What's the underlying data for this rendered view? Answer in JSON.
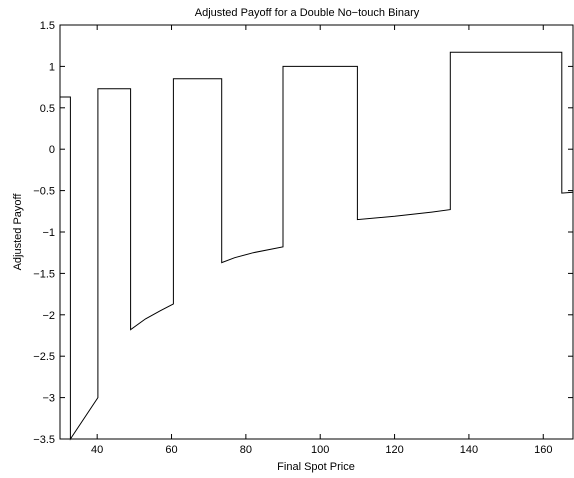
{
  "chart_data": {
    "type": "line",
    "title": "Adjusted Payoff for a Double No−touch Binary",
    "xlabel": "Final Spot Price",
    "ylabel": "Adjusted Payoff",
    "xlim": [
      30,
      168
    ],
    "ylim": [
      -3.5,
      1.5
    ],
    "grid": false,
    "x_ticks": [
      40,
      60,
      80,
      100,
      120,
      140,
      160
    ],
    "x_tick_labels": [
      "40",
      "60",
      "80",
      "100",
      "120",
      "140",
      "160"
    ],
    "y_ticks": [
      1.5,
      1,
      0.5,
      0,
      -0.5,
      -1,
      -1.5,
      -2,
      -2.5,
      -3,
      -3.5
    ],
    "y_tick_labels": [
      "1.5",
      "1",
      "0.5",
      "0",
      "−0.5",
      "−1",
      "−1.5",
      "−2",
      "−2.5",
      "−3",
      "−3.5"
    ],
    "series": [
      {
        "color": "#000000",
        "x": [
          30,
          32.8,
          32.8,
          40.2,
          40.2,
          49,
          49,
          53,
          57,
          60.5,
          60.5,
          73.5,
          73.5,
          77,
          82,
          90,
          90,
          110,
          110,
          120,
          130,
          135,
          135,
          165,
          165,
          168
        ],
        "y": [
          0.63,
          0.63,
          -3.5,
          -3.0,
          0.73,
          0.73,
          -2.18,
          -2.05,
          -1.95,
          -1.87,
          0.85,
          0.85,
          -1.37,
          -1.31,
          -1.25,
          -1.18,
          1.0,
          1.0,
          -0.85,
          -0.81,
          -0.76,
          -0.73,
          1.17,
          1.17,
          -0.53,
          -0.52
        ]
      }
    ]
  }
}
